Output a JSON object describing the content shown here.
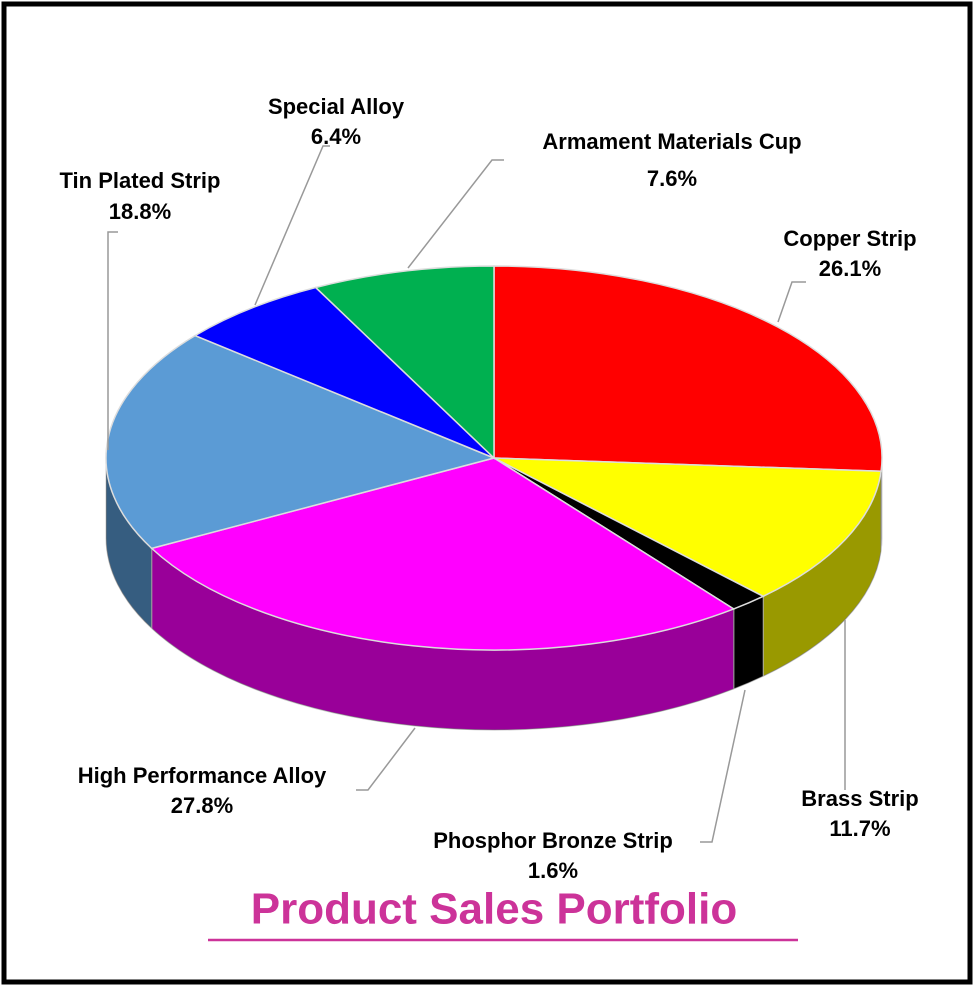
{
  "chart_data": {
    "type": "pie",
    "title": "Product Sales Portfolio",
    "categories": [
      "Copper Strip",
      "Brass Strip",
      "Phosphor Bronze Strip",
      "High Performance Alloy",
      "Tin Plated Strip",
      "Special Alloy",
      "Armament  Materials Cup"
    ],
    "values": [
      26.1,
      11.7,
      1.6,
      27.8,
      18.8,
      6.4,
      7.6
    ],
    "value_labels": [
      "26.1%",
      "11.7%",
      "1.6%",
      "27.8%",
      "18.8%",
      "6.4%",
      "7.6%"
    ],
    "colors": [
      "#ff0000",
      "#ffff00",
      "#000000",
      "#ff00ff",
      "#5b9bd5",
      "#0000ff",
      "#00b050"
    ]
  }
}
